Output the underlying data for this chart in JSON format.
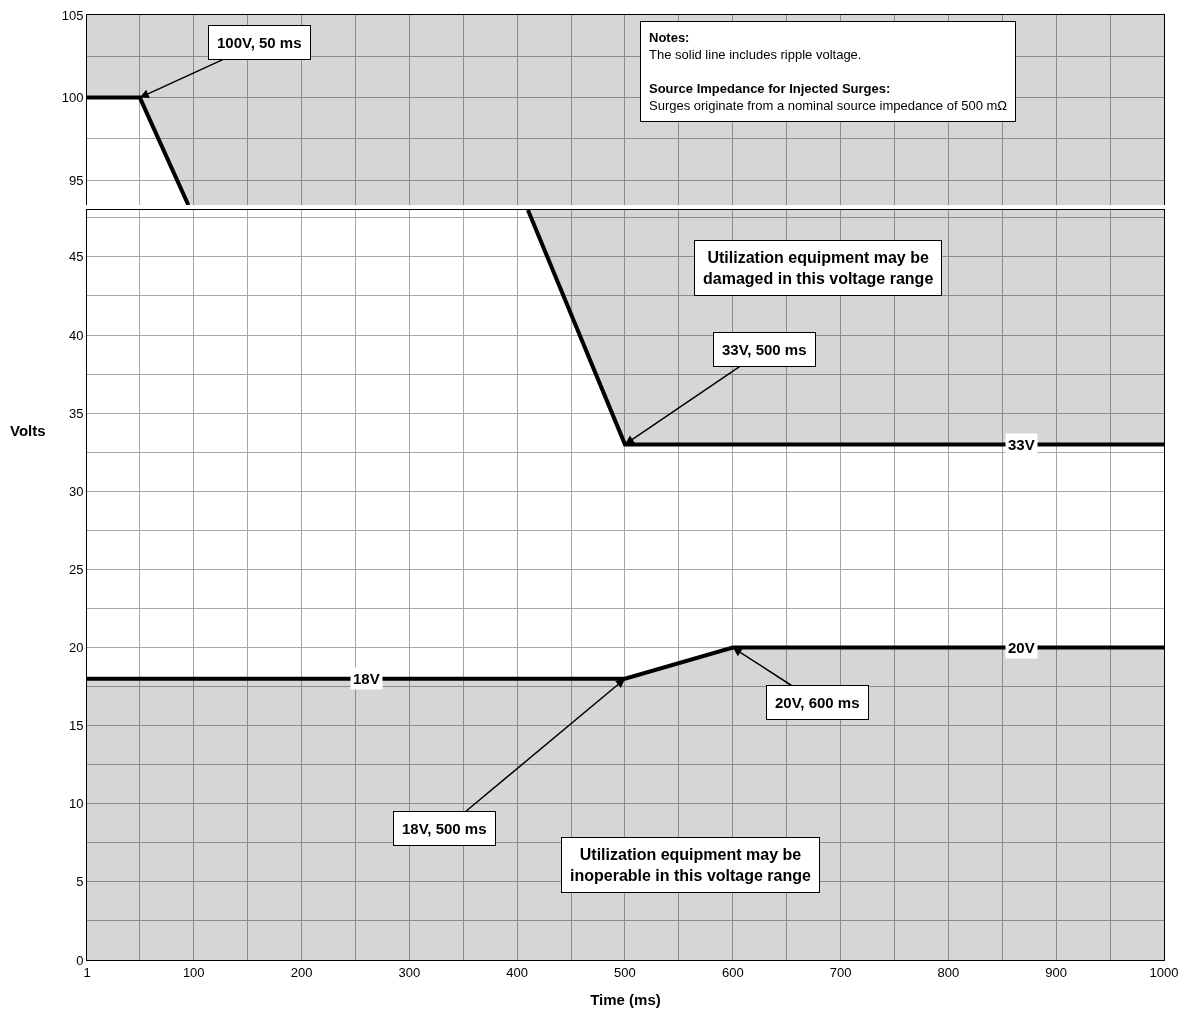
{
  "chart_data": [
    {
      "type": "line",
      "tick_labels": "y",
      "grid": true,
      "xlim": [
        1,
        1000
      ],
      "ylim": [
        93.5,
        105
      ],
      "xticks": [
        1,
        {
          "value": 50,
          "label": null
        },
        100,
        {
          "value": 150,
          "label": null
        },
        200,
        {
          "value": 250,
          "label": null
        },
        300,
        {
          "value": 350,
          "label": null
        },
        400,
        {
          "value": 450,
          "label": null
        },
        500,
        {
          "value": 550,
          "label": null
        },
        600,
        {
          "value": 650,
          "label": null
        },
        700,
        {
          "value": 750,
          "label": null
        },
        800,
        {
          "value": 850,
          "label": null
        },
        900,
        {
          "value": 950,
          "label": null
        },
        1000
      ],
      "yticks": [
        95,
        {
          "value": 97.5,
          "label": null
        },
        100,
        {
          "value": 102.5,
          "label": null
        },
        105
      ],
      "series": [
        {
          "color": "#000000",
          "x": [
            1,
            50,
            95
          ],
          "values": [
            100,
            100,
            93.5
          ]
        }
      ],
      "annotations": [
        {
          "text": "100V, 50 ms",
          "x": 50,
          "y": 100
        },
        "Notes:",
        "The solid line includes ripple voltage.",
        "Source Impedance for Injected Surges:",
        "Surges originate from a nominal source impedance of 500 mΩ"
      ]
    },
    {
      "type": "line",
      "grid": true,
      "xlabel": "Time (ms)",
      "ylabel": "Volts",
      "xlim": [
        1,
        1000
      ],
      "ylim": [
        0,
        48
      ],
      "xticks": [
        1,
        {
          "value": 50,
          "label": null
        },
        100,
        {
          "value": 150,
          "label": null
        },
        200,
        {
          "value": 250,
          "label": null
        },
        300,
        {
          "value": 350,
          "label": null
        },
        400,
        {
          "value": 450,
          "label": null
        },
        500,
        {
          "value": 550,
          "label": null
        },
        600,
        {
          "value": 650,
          "label": null
        },
        700,
        {
          "value": 750,
          "label": null
        },
        800,
        {
          "value": 850,
          "label": null
        },
        900,
        {
          "value": 950,
          "label": null
        },
        1000
      ],
      "yticks": [
        0,
        {
          "value": 2.5,
          "label": null
        },
        5,
        {
          "value": 7.5,
          "label": null
        },
        10,
        {
          "value": 12.5,
          "label": null
        },
        15,
        {
          "value": 17.5,
          "label": null
        },
        20,
        {
          "value": 22.5,
          "label": null
        },
        25,
        {
          "value": 27.5,
          "label": null
        },
        30,
        {
          "value": 32.5,
          "label": null
        },
        35,
        {
          "value": 37.5,
          "label": null
        },
        40,
        {
          "value": 42.5,
          "label": null
        },
        45,
        {
          "value": 47.5,
          "label": null
        }
      ],
      "series": [
        {
          "color": "#000000",
          "x": [
            410,
            500,
            1000
          ],
          "values": [
            48,
            33,
            33
          ]
        },
        {
          "type": "area",
          "color": "#000000",
          "x": [
            1,
            500,
            600,
            1000
          ],
          "values": [
            18,
            18,
            20,
            20
          ]
        }
      ],
      "annotations": [
        {
          "text": "33V, 500 ms",
          "x": 500,
          "y": 33
        },
        {
          "text": "18V, 500 ms",
          "x": 500,
          "y": 18
        },
        {
          "text": "20V, 600 ms",
          "x": 600,
          "y": 20
        },
        {
          "text": "18V",
          "x": 260,
          "y": 18
        },
        {
          "text": "33V",
          "x": 868,
          "y": 33
        },
        {
          "text": "20V",
          "x": 868,
          "y": 20
        },
        "Utilization equipment may be damaged in this voltage range",
        "Utilization equipment may be inoperable in this voltage range"
      ]
    }
  ]
}
